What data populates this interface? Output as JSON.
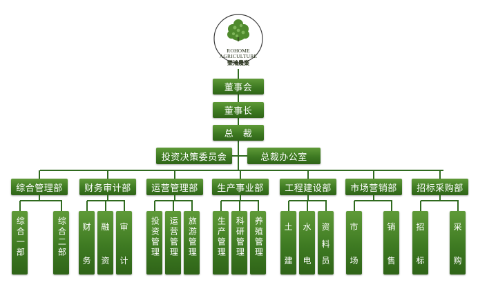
{
  "logo": {
    "line1": "ROHOME",
    "line2": "AGRICULTURE",
    "chinese": "榮鴻農業"
  },
  "top": {
    "board": "董事会",
    "chairman": "董事长",
    "president": "总　裁",
    "investment_committee": "投资决策委员会",
    "president_office": "总裁办公室"
  },
  "departments": [
    {
      "label": "综合管理部",
      "units": [
        "综合一部",
        "综合二部"
      ]
    },
    {
      "label": "财务审计部",
      "units": [
        "财务",
        "融资",
        "审计"
      ]
    },
    {
      "label": "运营管理部",
      "units": [
        "投资管理",
        "运营管理",
        "旅游管理"
      ]
    },
    {
      "label": "生产事业部",
      "units": [
        "生产管理",
        "科研管理",
        "养殖管理"
      ]
    },
    {
      "label": "工程建设部",
      "units": [
        "土建",
        "水电",
        "资料员"
      ]
    },
    {
      "label": "市场营销部",
      "units": [
        "市场",
        "销售"
      ]
    },
    {
      "label": "招标采购部",
      "units": [
        "招标",
        "采购"
      ]
    }
  ],
  "colors": {
    "box_green": "#3e7a22",
    "line_green": "#2f6a1e",
    "text": "#ffffff"
  },
  "icons": {
    "logo": "tree-leaf-logo-icon"
  }
}
